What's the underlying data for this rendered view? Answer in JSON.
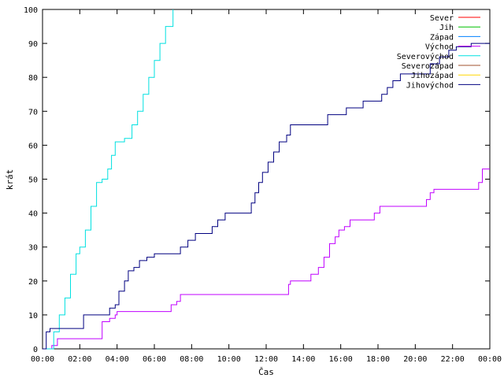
{
  "chart_data": {
    "type": "line",
    "xlabel": "Čas",
    "ylabel": "krát",
    "x_unit": "hours",
    "xlim": [
      0,
      24
    ],
    "ylim": [
      0,
      100
    ],
    "x_tick_labels": [
      "00:00",
      "02:00",
      "04:00",
      "06:00",
      "08:00",
      "10:00",
      "12:00",
      "14:00",
      "16:00",
      "18:00",
      "20:00",
      "22:00",
      "00:00"
    ],
    "y_tick_labels": [
      "0",
      "10",
      "20",
      "30",
      "40",
      "50",
      "60",
      "70",
      "80",
      "90",
      "100"
    ],
    "grid": false,
    "legend_position": "top-right",
    "step": true,
    "series": [
      {
        "name": "Sever",
        "color": "#ff0000",
        "points": []
      },
      {
        "name": "Jih",
        "color": "#00c000",
        "points": []
      },
      {
        "name": "Západ",
        "color": "#0080ff",
        "points": []
      },
      {
        "name": "Východ",
        "color": "#c000ff",
        "points": [
          [
            0,
            0
          ],
          [
            0.5,
            1
          ],
          [
            0.8,
            3
          ],
          [
            3.0,
            3
          ],
          [
            3.2,
            8
          ],
          [
            3.6,
            9
          ],
          [
            3.9,
            10
          ],
          [
            4.0,
            11
          ],
          [
            6.5,
            11
          ],
          [
            6.9,
            13
          ],
          [
            7.2,
            14
          ],
          [
            7.4,
            16
          ],
          [
            13.1,
            16
          ],
          [
            13.2,
            19
          ],
          [
            13.3,
            20
          ],
          [
            14.4,
            22
          ],
          [
            14.8,
            24
          ],
          [
            15.1,
            27
          ],
          [
            15.4,
            31
          ],
          [
            15.7,
            33
          ],
          [
            15.9,
            35
          ],
          [
            16.2,
            36
          ],
          [
            16.5,
            38
          ],
          [
            17.6,
            38
          ],
          [
            17.8,
            40
          ],
          [
            18.1,
            42
          ],
          [
            20.4,
            42
          ],
          [
            20.6,
            44
          ],
          [
            20.8,
            46
          ],
          [
            21.0,
            47
          ],
          [
            23.3,
            47
          ],
          [
            23.4,
            49
          ],
          [
            23.6,
            53
          ],
          [
            24,
            53
          ]
        ]
      },
      {
        "name": "Severovýchod",
        "color": "#00e0e0",
        "points": [
          [
            0,
            0
          ],
          [
            0.3,
            0
          ],
          [
            0.6,
            5
          ],
          [
            0.9,
            10
          ],
          [
            1.2,
            15
          ],
          [
            1.5,
            22
          ],
          [
            1.8,
            28
          ],
          [
            2.0,
            30
          ],
          [
            2.3,
            35
          ],
          [
            2.6,
            42
          ],
          [
            2.9,
            49
          ],
          [
            3.2,
            50
          ],
          [
            3.5,
            53
          ],
          [
            3.7,
            57
          ],
          [
            3.9,
            61
          ],
          [
            4.4,
            62
          ],
          [
            4.8,
            66
          ],
          [
            5.1,
            70
          ],
          [
            5.4,
            75
          ],
          [
            5.7,
            80
          ],
          [
            6.0,
            85
          ],
          [
            6.3,
            90
          ],
          [
            6.6,
            95
          ],
          [
            7.0,
            100
          ]
        ]
      },
      {
        "name": "Severozápad",
        "color": "#a0522d",
        "points": []
      },
      {
        "name": "Jihozápad",
        "color": "#ffd700",
        "points": []
      },
      {
        "name": "Jihovýchod",
        "color": "#000080",
        "points": [
          [
            0,
            0
          ],
          [
            0.2,
            5
          ],
          [
            0.4,
            6
          ],
          [
            2.0,
            6
          ],
          [
            2.2,
            10
          ],
          [
            3.4,
            10
          ],
          [
            3.6,
            12
          ],
          [
            3.9,
            13
          ],
          [
            4.1,
            17
          ],
          [
            4.4,
            20
          ],
          [
            4.6,
            23
          ],
          [
            4.9,
            24
          ],
          [
            5.2,
            26
          ],
          [
            5.6,
            27
          ],
          [
            6.0,
            28
          ],
          [
            7.1,
            28
          ],
          [
            7.4,
            30
          ],
          [
            7.8,
            32
          ],
          [
            8.2,
            34
          ],
          [
            8.9,
            34
          ],
          [
            9.1,
            36
          ],
          [
            9.4,
            38
          ],
          [
            9.8,
            40
          ],
          [
            11.0,
            40
          ],
          [
            11.2,
            43
          ],
          [
            11.4,
            46
          ],
          [
            11.6,
            49
          ],
          [
            11.8,
            52
          ],
          [
            12.1,
            55
          ],
          [
            12.4,
            58
          ],
          [
            12.7,
            61
          ],
          [
            13.1,
            63
          ],
          [
            13.3,
            66
          ],
          [
            15.0,
            66
          ],
          [
            15.3,
            69
          ],
          [
            16.0,
            69
          ],
          [
            16.3,
            71
          ],
          [
            17.0,
            71
          ],
          [
            17.2,
            73
          ],
          [
            18.0,
            73
          ],
          [
            18.2,
            75
          ],
          [
            18.5,
            77
          ],
          [
            18.8,
            79
          ],
          [
            19.2,
            81
          ],
          [
            20.3,
            81
          ],
          [
            20.8,
            84
          ],
          [
            21.3,
            86
          ],
          [
            21.8,
            88
          ],
          [
            22.2,
            89
          ],
          [
            23.0,
            90
          ],
          [
            24,
            90
          ]
        ]
      }
    ]
  }
}
